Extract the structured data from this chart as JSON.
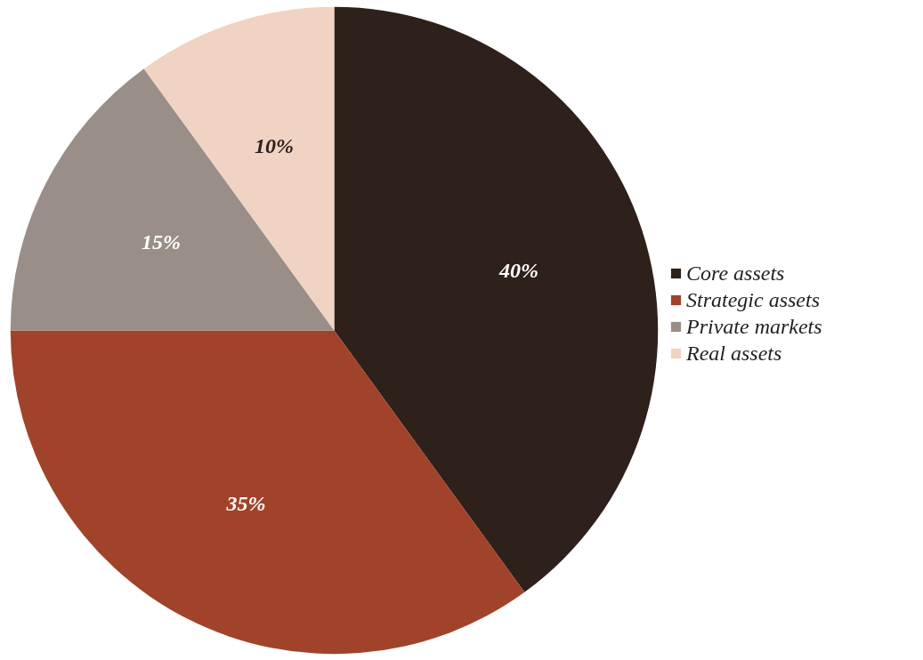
{
  "chart_data": {
    "type": "pie",
    "categories": [
      "Core assets",
      "Strategic assets",
      "Private markets",
      "Real assets"
    ],
    "values": [
      40,
      35,
      15,
      10
    ],
    "colors": [
      "#2e201b",
      "#a0432a",
      "#9a8f88",
      "#f0d3c3"
    ],
    "value_labels": [
      "40%",
      "35%",
      "15%",
      "10%"
    ],
    "legend": "right"
  }
}
